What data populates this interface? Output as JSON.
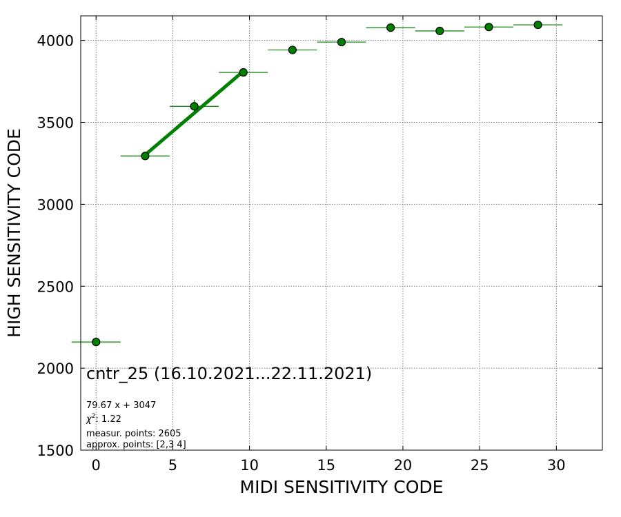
{
  "chart_data": {
    "type": "scatter",
    "xlabel": "MIDI SENSITIVITY CODE",
    "ylabel": "HIGH SENSITIVITY CODE",
    "xlim": [
      -1,
      33
    ],
    "ylim": [
      1500,
      4150
    ],
    "xticks": [
      0,
      5,
      10,
      15,
      20,
      25,
      30
    ],
    "yticks": [
      1500,
      2000,
      2500,
      3000,
      3500,
      4000
    ],
    "grid": true,
    "colors": {
      "point": "#008000",
      "edge": "#000000",
      "fit": "#008000"
    },
    "points": [
      {
        "x": 0.0,
        "y": 2160,
        "xerr": 1.6,
        "yerr": 0
      },
      {
        "x": 3.2,
        "y": 3295,
        "xerr": 1.6,
        "yerr": 0
      },
      {
        "x": 6.4,
        "y": 3598,
        "xerr": 1.6,
        "yerr": 40
      },
      {
        "x": 9.6,
        "y": 3805,
        "xerr": 1.6,
        "yerr": 0
      },
      {
        "x": 12.8,
        "y": 3942,
        "xerr": 1.6,
        "yerr": 0
      },
      {
        "x": 16.0,
        "y": 3990,
        "xerr": 1.6,
        "yerr": 0
      },
      {
        "x": 19.2,
        "y": 4078,
        "xerr": 1.6,
        "yerr": 0
      },
      {
        "x": 22.4,
        "y": 4058,
        "xerr": 1.6,
        "yerr": 0
      },
      {
        "x": 25.6,
        "y": 4082,
        "xerr": 1.6,
        "yerr": 0
      },
      {
        "x": 28.8,
        "y": 4095,
        "xerr": 1.6,
        "yerr": 0
      }
    ],
    "fit": {
      "slope": 79.67,
      "intercept": 3047,
      "x_range": [
        3.2,
        9.6
      ]
    },
    "annotations": {
      "title": "cntr_25 (16.10.2021...22.11.2021)",
      "equation": "79.67 x + 3047",
      "chi2_symbol": "χ",
      "chi2_exp": "2",
      "chi2_value": ": 1.22",
      "measur_points": "measur. points: 2605",
      "approx_points": "approx. points: [2,3 4]"
    }
  }
}
